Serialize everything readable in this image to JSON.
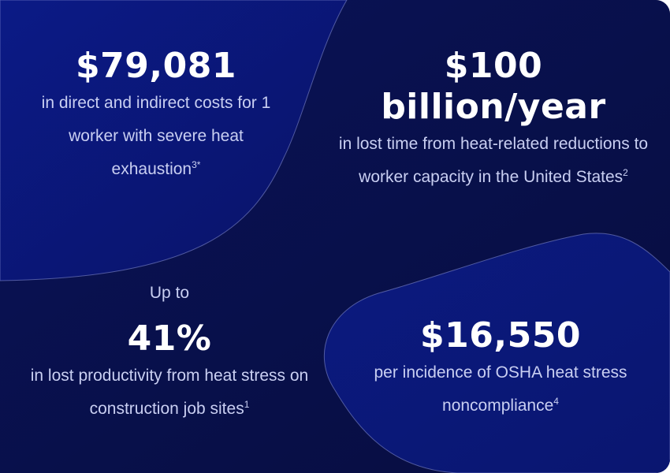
{
  "stats": [
    {
      "figure": "$79,081",
      "description": "in direct and indirect costs for 1 worker with severe heat exhaustion",
      "footnote": "3*"
    },
    {
      "figure": "$100 billion/year",
      "description": "in lost time from heat-related reductions to worker capacity in the United States",
      "footnote": "2"
    },
    {
      "prefix": "Up to",
      "figure": "41%",
      "description": "in lost productivity from heat stress on construction job sites",
      "footnote": "1"
    },
    {
      "figure": "$16,550",
      "description": "per incidence of OSHA heat stress noncompliance",
      "footnote": "4"
    }
  ],
  "colors": {
    "background_dark": "#0a1150",
    "panel_blue": "#0c1c8a",
    "text_white": "#ffffff",
    "text_light": "#c9cff2",
    "outline": "#8a93d6"
  }
}
